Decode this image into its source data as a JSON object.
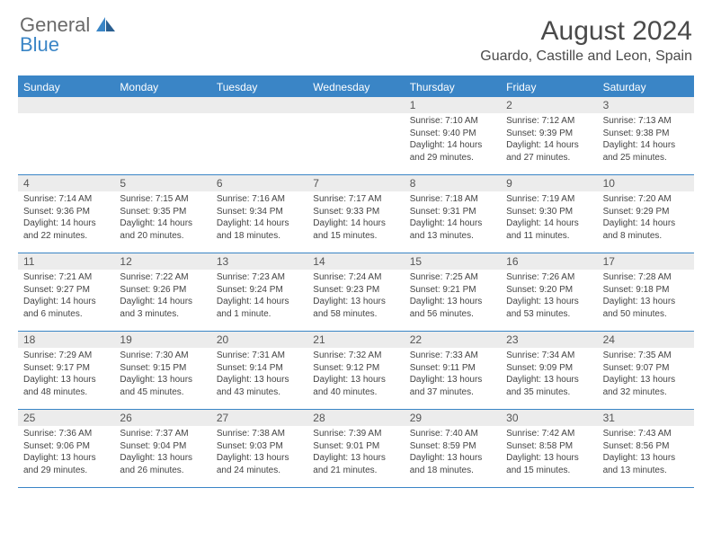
{
  "logo": {
    "general": "General",
    "blue": "Blue"
  },
  "title": "August 2024",
  "location": "Guardo, Castille and Leon, Spain",
  "weekdays": [
    "Sunday",
    "Monday",
    "Tuesday",
    "Wednesday",
    "Thursday",
    "Friday",
    "Saturday"
  ],
  "colors": {
    "accent": "#3a85c6",
    "gray_bg": "#ececec",
    "text": "#4a4a4a"
  },
  "weeks": [
    [
      null,
      null,
      null,
      null,
      {
        "d": "1",
        "sr": "7:10 AM",
        "ss": "9:40 PM",
        "dl": "14 hours and 29 minutes."
      },
      {
        "d": "2",
        "sr": "7:12 AM",
        "ss": "9:39 PM",
        "dl": "14 hours and 27 minutes."
      },
      {
        "d": "3",
        "sr": "7:13 AM",
        "ss": "9:38 PM",
        "dl": "14 hours and 25 minutes."
      }
    ],
    [
      {
        "d": "4",
        "sr": "7:14 AM",
        "ss": "9:36 PM",
        "dl": "14 hours and 22 minutes."
      },
      {
        "d": "5",
        "sr": "7:15 AM",
        "ss": "9:35 PM",
        "dl": "14 hours and 20 minutes."
      },
      {
        "d": "6",
        "sr": "7:16 AM",
        "ss": "9:34 PM",
        "dl": "14 hours and 18 minutes."
      },
      {
        "d": "7",
        "sr": "7:17 AM",
        "ss": "9:33 PM",
        "dl": "14 hours and 15 minutes."
      },
      {
        "d": "8",
        "sr": "7:18 AM",
        "ss": "9:31 PM",
        "dl": "14 hours and 13 minutes."
      },
      {
        "d": "9",
        "sr": "7:19 AM",
        "ss": "9:30 PM",
        "dl": "14 hours and 11 minutes."
      },
      {
        "d": "10",
        "sr": "7:20 AM",
        "ss": "9:29 PM",
        "dl": "14 hours and 8 minutes."
      }
    ],
    [
      {
        "d": "11",
        "sr": "7:21 AM",
        "ss": "9:27 PM",
        "dl": "14 hours and 6 minutes."
      },
      {
        "d": "12",
        "sr": "7:22 AM",
        "ss": "9:26 PM",
        "dl": "14 hours and 3 minutes."
      },
      {
        "d": "13",
        "sr": "7:23 AM",
        "ss": "9:24 PM",
        "dl": "14 hours and 1 minute."
      },
      {
        "d": "14",
        "sr": "7:24 AM",
        "ss": "9:23 PM",
        "dl": "13 hours and 58 minutes."
      },
      {
        "d": "15",
        "sr": "7:25 AM",
        "ss": "9:21 PM",
        "dl": "13 hours and 56 minutes."
      },
      {
        "d": "16",
        "sr": "7:26 AM",
        "ss": "9:20 PM",
        "dl": "13 hours and 53 minutes."
      },
      {
        "d": "17",
        "sr": "7:28 AM",
        "ss": "9:18 PM",
        "dl": "13 hours and 50 minutes."
      }
    ],
    [
      {
        "d": "18",
        "sr": "7:29 AM",
        "ss": "9:17 PM",
        "dl": "13 hours and 48 minutes."
      },
      {
        "d": "19",
        "sr": "7:30 AM",
        "ss": "9:15 PM",
        "dl": "13 hours and 45 minutes."
      },
      {
        "d": "20",
        "sr": "7:31 AM",
        "ss": "9:14 PM",
        "dl": "13 hours and 43 minutes."
      },
      {
        "d": "21",
        "sr": "7:32 AM",
        "ss": "9:12 PM",
        "dl": "13 hours and 40 minutes."
      },
      {
        "d": "22",
        "sr": "7:33 AM",
        "ss": "9:11 PM",
        "dl": "13 hours and 37 minutes."
      },
      {
        "d": "23",
        "sr": "7:34 AM",
        "ss": "9:09 PM",
        "dl": "13 hours and 35 minutes."
      },
      {
        "d": "24",
        "sr": "7:35 AM",
        "ss": "9:07 PM",
        "dl": "13 hours and 32 minutes."
      }
    ],
    [
      {
        "d": "25",
        "sr": "7:36 AM",
        "ss": "9:06 PM",
        "dl": "13 hours and 29 minutes."
      },
      {
        "d": "26",
        "sr": "7:37 AM",
        "ss": "9:04 PM",
        "dl": "13 hours and 26 minutes."
      },
      {
        "d": "27",
        "sr": "7:38 AM",
        "ss": "9:03 PM",
        "dl": "13 hours and 24 minutes."
      },
      {
        "d": "28",
        "sr": "7:39 AM",
        "ss": "9:01 PM",
        "dl": "13 hours and 21 minutes."
      },
      {
        "d": "29",
        "sr": "7:40 AM",
        "ss": "8:59 PM",
        "dl": "13 hours and 18 minutes."
      },
      {
        "d": "30",
        "sr": "7:42 AM",
        "ss": "8:58 PM",
        "dl": "13 hours and 15 minutes."
      },
      {
        "d": "31",
        "sr": "7:43 AM",
        "ss": "8:56 PM",
        "dl": "13 hours and 13 minutes."
      }
    ]
  ],
  "labels": {
    "sunrise": "Sunrise: ",
    "sunset": "Sunset: ",
    "daylight": "Daylight: "
  }
}
